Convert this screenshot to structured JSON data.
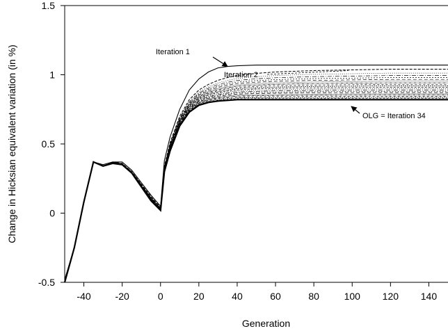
{
  "chart_data": {
    "type": "line",
    "title": "",
    "xlabel": "Generation",
    "ylabel": "Change in Hicksian equivalent variation (in %)",
    "xlim": [
      -50,
      150
    ],
    "ylim": [
      -0.5,
      1.5
    ],
    "xticks": [
      -40,
      -20,
      0,
      20,
      40,
      60,
      80,
      100,
      120,
      140
    ],
    "yticks": [
      -0.5,
      0,
      0.5,
      1,
      1.5
    ],
    "ytick_labels": [
      "-0.5",
      "0",
      "0.5",
      "1",
      "1.5"
    ],
    "grid": false,
    "legend": "none",
    "annotations": [
      {
        "text": "Iteration 1",
        "points_to": [
          35,
          1.05
        ]
      },
      {
        "text": "Iteration 2",
        "points_to": [
          98,
          1.03
        ]
      },
      {
        "text": "OLG = Iteration 34",
        "points_to": [
          97,
          0.88
        ]
      }
    ],
    "series": [
      {
        "name": "Iteration 1",
        "style": "solid",
        "asymptote": 1.07,
        "x": [
          -50,
          -45,
          -40,
          -35,
          -30,
          -25,
          -20,
          -15,
          -10,
          -5,
          0,
          2,
          5,
          10,
          15,
          20,
          25,
          30,
          35,
          40,
          50,
          60,
          70,
          80,
          100,
          120,
          150
        ],
        "y": [
          -0.48,
          -0.25,
          0.08,
          0.37,
          0.35,
          0.37,
          0.37,
          0.31,
          0.22,
          0.13,
          0.05,
          0.38,
          0.55,
          0.75,
          0.89,
          0.97,
          1.02,
          1.05,
          1.06,
          1.065,
          1.07,
          1.07,
          1.07,
          1.07,
          1.07,
          1.07,
          1.07
        ]
      },
      {
        "name": "Iteration 2",
        "style": "dashed",
        "asymptote": 1.04,
        "x": [
          -50,
          -45,
          -40,
          -35,
          -30,
          -25,
          -20,
          -15,
          -10,
          -5,
          0,
          2,
          5,
          10,
          15,
          20,
          25,
          30,
          35,
          40,
          50,
          60,
          70,
          80,
          100,
          120,
          150
        ],
        "y": [
          -0.48,
          -0.25,
          0.08,
          0.37,
          0.34,
          0.37,
          0.36,
          0.3,
          0.21,
          0.12,
          0.04,
          0.34,
          0.51,
          0.7,
          0.82,
          0.89,
          0.93,
          0.96,
          0.98,
          0.995,
          1.01,
          1.02,
          1.025,
          1.03,
          1.035,
          1.04,
          1.04
        ]
      },
      {
        "name": "OLG = Iteration 34",
        "style": "solid-bold",
        "asymptote": 0.82,
        "x": [
          -50,
          -45,
          -40,
          -35,
          -30,
          -25,
          -20,
          -15,
          -10,
          -5,
          0,
          2,
          5,
          10,
          15,
          20,
          25,
          30,
          35,
          40,
          50,
          60,
          70,
          80,
          100,
          120,
          150
        ],
        "y": [
          -0.5,
          -0.25,
          0.08,
          0.37,
          0.34,
          0.36,
          0.35,
          0.29,
          0.19,
          0.09,
          0.02,
          0.3,
          0.45,
          0.63,
          0.73,
          0.78,
          0.8,
          0.81,
          0.815,
          0.82,
          0.82,
          0.82,
          0.82,
          0.82,
          0.82,
          0.82,
          0.82
        ]
      }
    ]
  }
}
